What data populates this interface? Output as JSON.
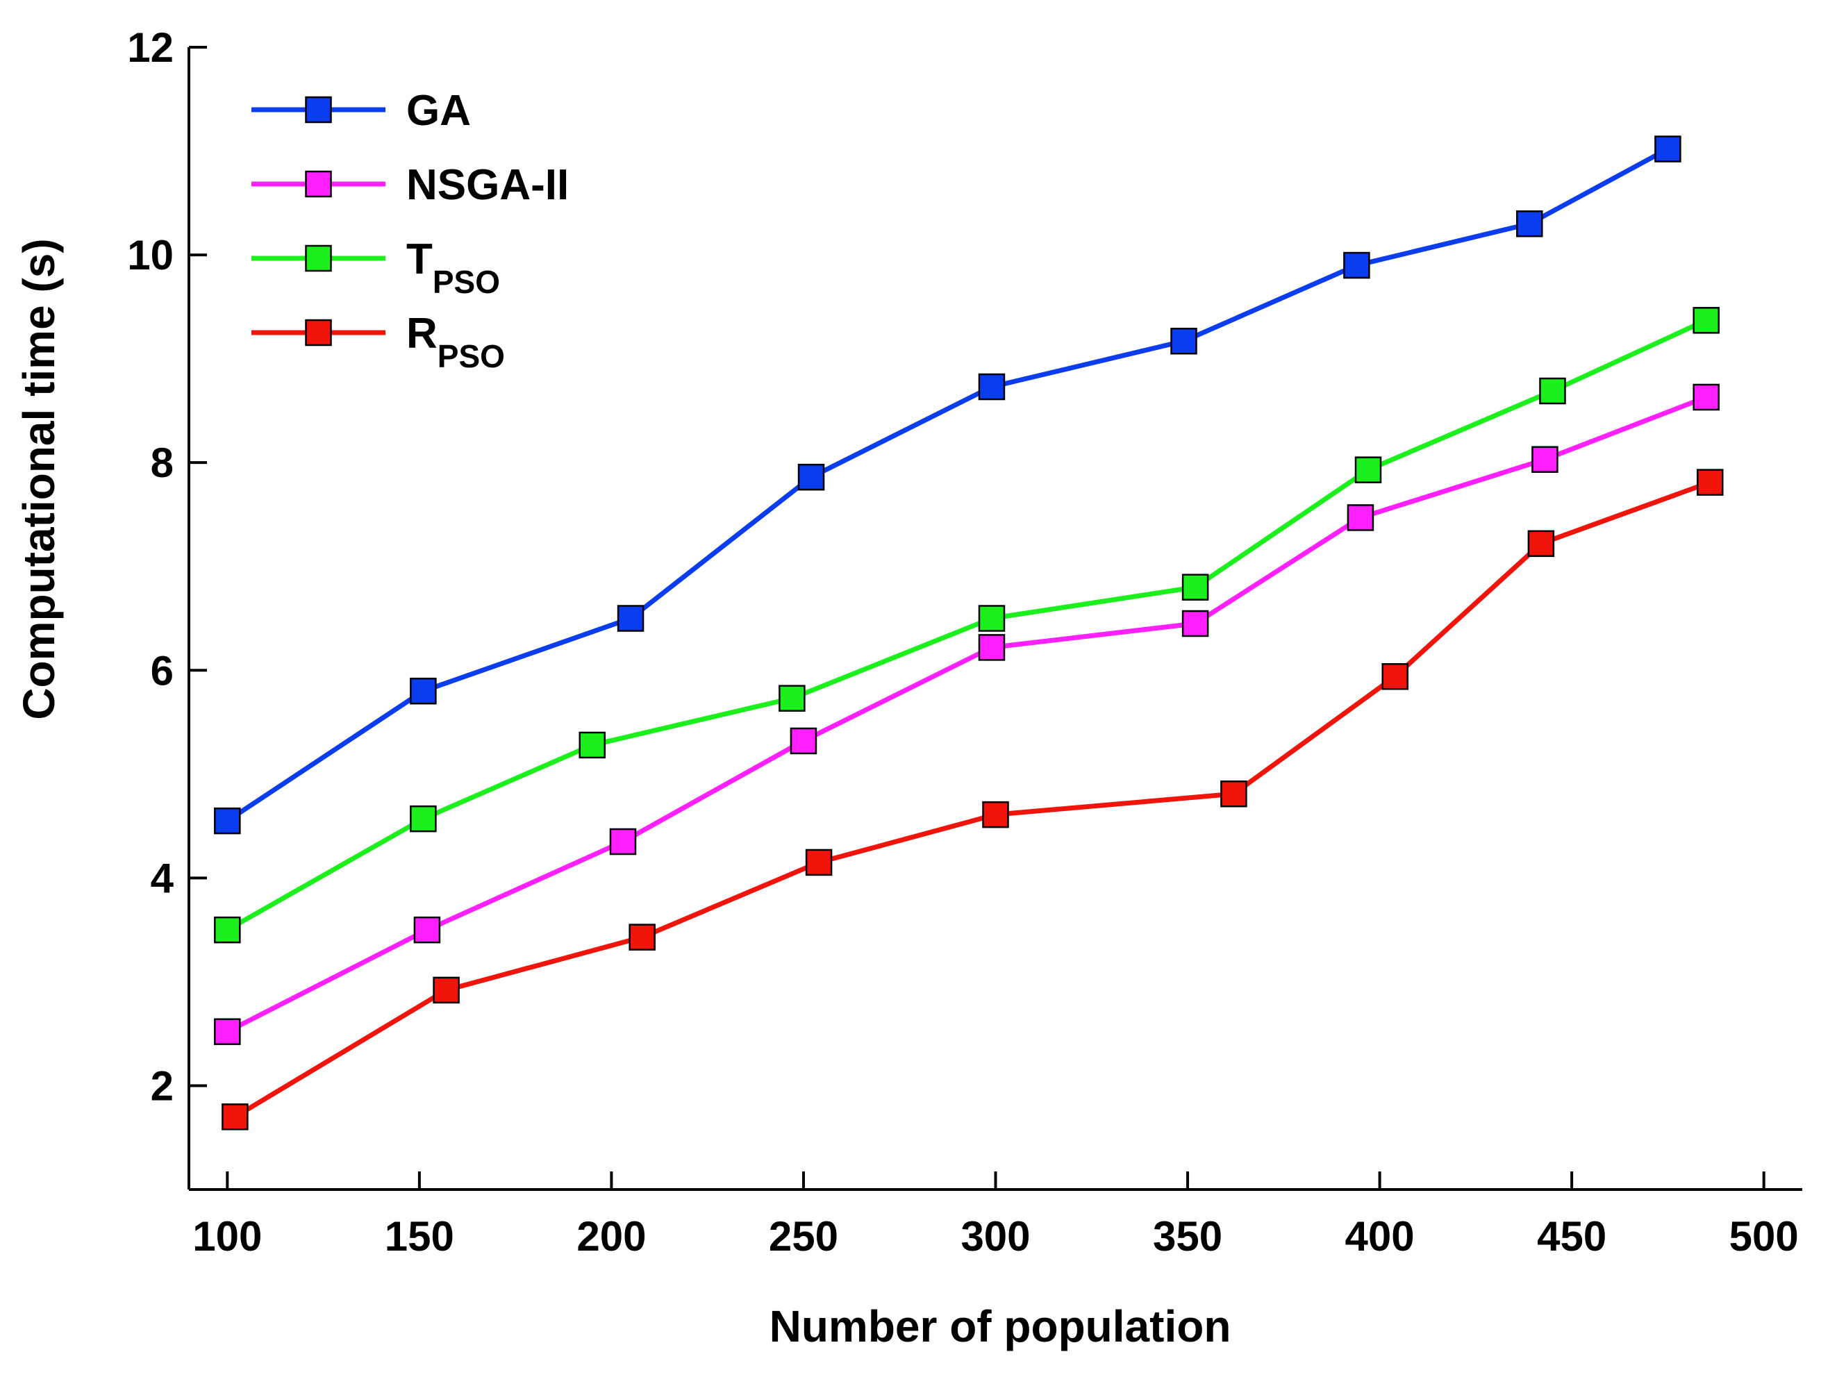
{
  "chart_data": {
    "type": "line",
    "title": "",
    "xlabel": "Number of population",
    "ylabel": "Computational time (s)",
    "xlim": [
      90,
      510
    ],
    "ylim": [
      1,
      12
    ],
    "grid": false,
    "legend_position": "top-left",
    "x_ticks": [
      100,
      150,
      200,
      250,
      300,
      350,
      400,
      450,
      500
    ],
    "y_ticks": [
      2,
      4,
      6,
      8,
      10,
      12
    ],
    "series": [
      {
        "name": "GA",
        "label_main": "GA",
        "label_sub": "",
        "color": "#0a3cf0",
        "points": [
          [
            100,
            4.55
          ],
          [
            151,
            5.8
          ],
          [
            205,
            6.5
          ],
          [
            252,
            7.86
          ],
          [
            299,
            8.73
          ],
          [
            349,
            9.17
          ],
          [
            394,
            9.9
          ],
          [
            439,
            10.3
          ],
          [
            475,
            11.02
          ]
        ]
      },
      {
        "name": "NSGA-II",
        "label_main": "NSGA-II",
        "label_sub": "",
        "color": "#ff1fff",
        "points": [
          [
            100,
            2.52
          ],
          [
            152,
            3.5
          ],
          [
            203,
            4.35
          ],
          [
            250,
            5.32
          ],
          [
            299,
            6.22
          ],
          [
            352,
            6.45
          ],
          [
            395,
            7.47
          ],
          [
            443,
            8.03
          ],
          [
            485,
            8.63
          ]
        ]
      },
      {
        "name": "TPSO",
        "label_main": "T",
        "label_sub": "PSO",
        "color": "#1cf01c",
        "points": [
          [
            100,
            3.5
          ],
          [
            151,
            4.57
          ],
          [
            195,
            5.28
          ],
          [
            247,
            5.73
          ],
          [
            299,
            6.5
          ],
          [
            352,
            6.8
          ],
          [
            397,
            7.93
          ],
          [
            445,
            8.69
          ],
          [
            485,
            9.37
          ]
        ]
      },
      {
        "name": "RPSO",
        "label_main": "R",
        "label_sub": "PSO",
        "color": "#f0140a",
        "points": [
          [
            102,
            1.7
          ],
          [
            157,
            2.92
          ],
          [
            208,
            3.43
          ],
          [
            254,
            4.15
          ],
          [
            300,
            4.61
          ],
          [
            362,
            4.81
          ],
          [
            404,
            5.94
          ],
          [
            442,
            7.22
          ],
          [
            486,
            7.81
          ]
        ]
      }
    ]
  }
}
